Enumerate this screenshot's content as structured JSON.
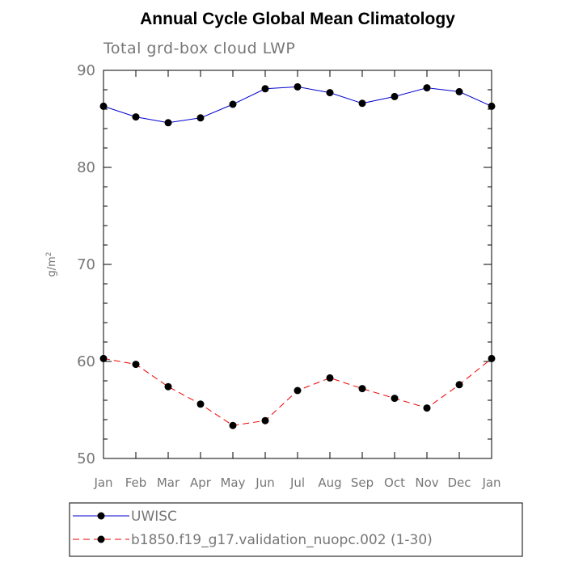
{
  "chart_data": {
    "type": "line",
    "title": "Annual Cycle Global Mean Climatology",
    "subtitle": "Total grd-box cloud LWP",
    "ylabel": "g/m",
    "ylabel_superscript": "2",
    "xlabel": "",
    "ylim": [
      50,
      90
    ],
    "yticks": [
      "50",
      "60",
      "70",
      "80",
      "90"
    ],
    "categories": [
      "Jan",
      "Feb",
      "Mar",
      "Apr",
      "May",
      "Jun",
      "Jul",
      "Aug",
      "Sep",
      "Oct",
      "Nov",
      "Dec",
      "Jan"
    ],
    "series": [
      {
        "name": "UWISC",
        "color": "#0000cc",
        "dash": "solid",
        "values": [
          86.3,
          85.2,
          84.6,
          85.1,
          86.5,
          88.1,
          88.3,
          87.7,
          86.6,
          87.3,
          88.2,
          87.8,
          86.3
        ]
      },
      {
        "name": "b1850.f19_g17.validation_nuopc.002 (1-30)",
        "color": "#ee0000",
        "dash": "dashed",
        "values": [
          60.3,
          59.7,
          57.4,
          55.6,
          53.4,
          53.9,
          57.0,
          58.3,
          57.2,
          56.2,
          55.2,
          57.6,
          60.3
        ]
      }
    ],
    "legend_position": "bottom"
  }
}
